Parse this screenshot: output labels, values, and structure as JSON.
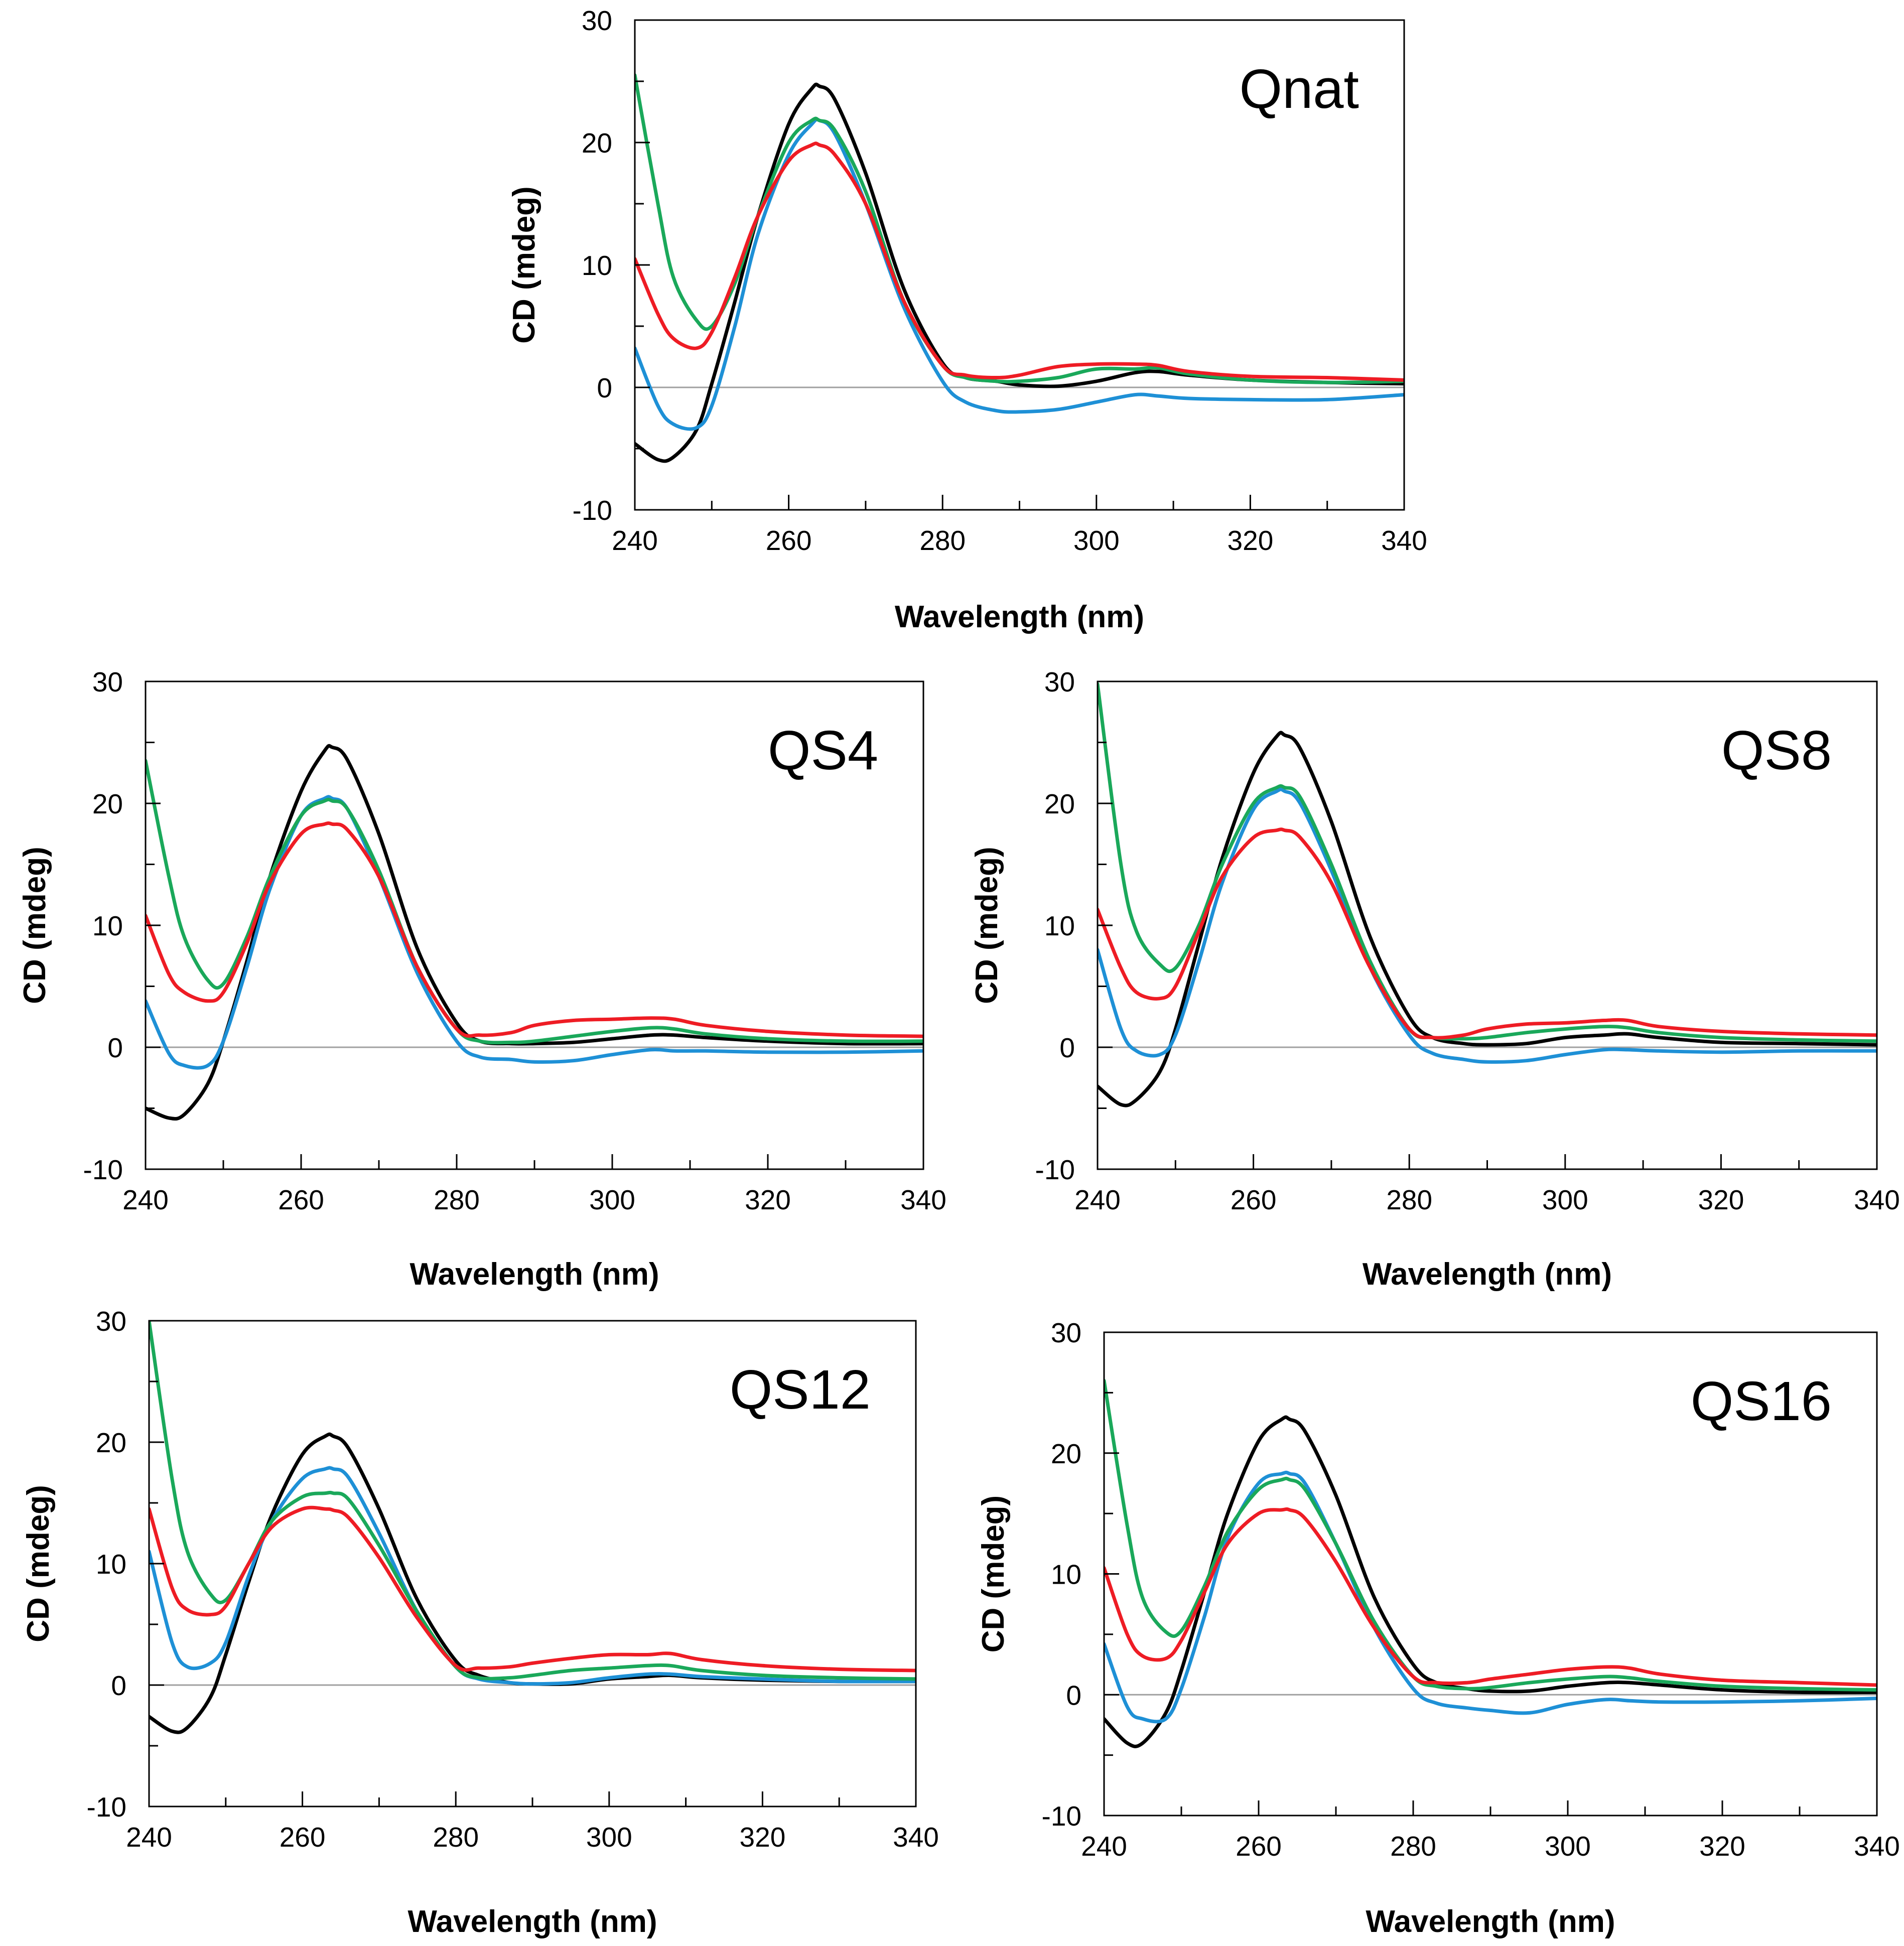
{
  "colors": {
    "black": "#000000",
    "blue": "#1e90d6",
    "green": "#1aa85a",
    "red": "#ee1c24"
  },
  "chart_data": [
    {
      "type": "line",
      "title": "Qnat",
      "xlabel": "Wavelength (nm)",
      "ylabel": "CD (mdeg)",
      "xlim": [
        240,
        340
      ],
      "ylim": [
        -10,
        30
      ],
      "xticks": [
        "240",
        "260",
        "280",
        "300",
        "320",
        "340"
      ],
      "yticks": [
        "-10",
        "0",
        "10",
        "20",
        "30"
      ],
      "x": [
        240,
        243,
        245,
        248,
        250,
        253,
        256,
        260,
        263,
        264,
        266,
        270,
        275,
        280,
        283,
        287,
        290,
        295,
        300,
        305,
        308,
        312,
        320,
        330,
        340
      ],
      "series": [
        {
          "name": "black",
          "color": "black",
          "values": [
            -4.6,
            -5.9,
            -5.7,
            -3.5,
            0.3,
            7,
            14,
            21.5,
            24.4,
            24.6,
            23.5,
            17.5,
            8,
            2,
            0.8,
            0.5,
            0.2,
            0.1,
            0.5,
            1.2,
            1.3,
            1,
            0.6,
            0.4,
            0.3
          ]
        },
        {
          "name": "blue",
          "color": "blue",
          "values": [
            3.2,
            -1.5,
            -3,
            -3.3,
            -1.5,
            5,
            12.5,
            19,
            21.5,
            21.8,
            20.7,
            15,
            6.5,
            0.5,
            -1.2,
            -1.9,
            -2,
            -1.8,
            -1.2,
            -0.6,
            -0.7,
            -0.9,
            -1,
            -1,
            -0.6
          ]
        },
        {
          "name": "green",
          "color": "green",
          "values": [
            25.5,
            15,
            9,
            5.5,
            5,
            8.5,
            14,
            20,
            21.8,
            21.8,
            21,
            16,
            7,
            1.8,
            0.8,
            0.5,
            0.5,
            0.8,
            1.5,
            1.5,
            1.6,
            1.1,
            0.6,
            0.4,
            0.5
          ]
        },
        {
          "name": "red",
          "color": "red",
          "values": [
            10.5,
            6,
            4,
            3.2,
            4.5,
            9,
            14,
            18.5,
            19.8,
            19.8,
            19,
            15,
            7,
            1.8,
            1,
            0.8,
            1,
            1.7,
            1.9,
            1.9,
            1.8,
            1.3,
            0.9,
            0.8,
            0.6
          ]
        }
      ]
    },
    {
      "type": "line",
      "title": "QS4",
      "xlabel": "Wavelength (nm)",
      "ylabel": "CD (mdeg)",
      "xlim": [
        240,
        340
      ],
      "ylim": [
        -10,
        30
      ],
      "xticks": [
        "240",
        "260",
        "280",
        "300",
        "320",
        "340"
      ],
      "yticks": [
        "-10",
        "0",
        "10",
        "20",
        "30"
      ],
      "x": [
        240,
        243,
        245,
        248,
        250,
        253,
        256,
        260,
        263,
        264,
        266,
        270,
        275,
        280,
        283,
        287,
        290,
        295,
        300,
        305,
        308,
        312,
        320,
        330,
        340
      ],
      "series": [
        {
          "name": "black",
          "color": "black",
          "values": [
            -5,
            -5.8,
            -5.5,
            -3,
            0.5,
            7,
            14,
            21,
            24.3,
            24.6,
            23.5,
            17.5,
            8,
            2,
            0.5,
            0.3,
            0.3,
            0.4,
            0.7,
            1,
            1,
            0.8,
            0.5,
            0.3,
            0.3
          ]
        },
        {
          "name": "blue",
          "color": "blue",
          "values": [
            3.8,
            -0.5,
            -1.5,
            -1.5,
            0.5,
            6.5,
            13,
            19,
            20.4,
            20.4,
            19.5,
            14,
            6,
            0.5,
            -0.8,
            -1,
            -1.2,
            -1.1,
            -0.6,
            -0.2,
            -0.3,
            -0.3,
            -0.4,
            -0.4,
            -0.3
          ]
        },
        {
          "name": "green",
          "color": "green",
          "values": [
            23.5,
            14,
            9,
            5.5,
            5.2,
            9,
            14,
            19,
            20.2,
            20.2,
            19.5,
            14.5,
            6.5,
            1.5,
            0.5,
            0.4,
            0.5,
            0.9,
            1.3,
            1.6,
            1.5,
            1.1,
            0.7,
            0.5,
            0.5
          ]
        },
        {
          "name": "red",
          "color": "red",
          "values": [
            10.8,
            6,
            4.5,
            3.8,
            4.5,
            8.5,
            13.5,
            17.5,
            18.3,
            18.3,
            17.8,
            14,
            6.5,
            1.5,
            1,
            1.2,
            1.8,
            2.2,
            2.3,
            2.4,
            2.3,
            1.8,
            1.3,
            1,
            0.9
          ]
        }
      ]
    },
    {
      "type": "line",
      "title": "QS8",
      "xlabel": "Wavelength (nm)",
      "ylabel": "CD (mdeg)",
      "xlim": [
        240,
        340
      ],
      "ylim": [
        -10,
        30
      ],
      "xticks": [
        "240",
        "260",
        "280",
        "300",
        "320",
        "340"
      ],
      "yticks": [
        "-10",
        "0",
        "10",
        "20",
        "30"
      ],
      "x": [
        240,
        243,
        245,
        248,
        250,
        253,
        256,
        260,
        263,
        264,
        266,
        270,
        275,
        280,
        283,
        287,
        290,
        295,
        300,
        305,
        308,
        312,
        320,
        330,
        340
      ],
      "series": [
        {
          "name": "black",
          "color": "black",
          "values": [
            -3.2,
            -4.7,
            -4.3,
            -2,
            1.5,
            8.5,
            15.5,
            22.5,
            25.5,
            25.6,
            24.5,
            18.5,
            9,
            2.5,
            0.8,
            0.3,
            0.2,
            0.3,
            0.8,
            1,
            1.1,
            0.8,
            0.4,
            0.3,
            0.2
          ]
        },
        {
          "name": "blue",
          "color": "blue",
          "values": [
            8,
            1.5,
            -0.3,
            -0.6,
            1,
            7,
            13.5,
            19.5,
            21,
            21,
            20,
            14.5,
            6.5,
            1,
            -0.5,
            -1,
            -1.2,
            -1.1,
            -0.6,
            -0.2,
            -0.2,
            -0.3,
            -0.4,
            -0.3,
            -0.3
          ]
        },
        {
          "name": "green",
          "color": "green",
          "values": [
            29.8,
            15,
            9.5,
            6.8,
            6.5,
            10,
            15,
            20,
            21.3,
            21.3,
            20.5,
            15,
            7,
            1.5,
            0.8,
            0.7,
            0.8,
            1.2,
            1.5,
            1.7,
            1.6,
            1.2,
            0.8,
            0.6,
            0.5
          ]
        },
        {
          "name": "red",
          "color": "red",
          "values": [
            11.3,
            6.5,
            4.5,
            4,
            5,
            9.5,
            14,
            17.2,
            17.8,
            17.8,
            17.2,
            13.5,
            6.5,
            1.5,
            0.8,
            1,
            1.5,
            1.9,
            2,
            2.2,
            2.2,
            1.7,
            1.3,
            1.1,
            1
          ]
        }
      ]
    },
    {
      "type": "line",
      "title": "QS12",
      "xlabel": "Wavelength (nm)",
      "ylabel": "CD (mdeg)",
      "xlim": [
        240,
        340
      ],
      "ylim": [
        -10,
        30
      ],
      "xticks": [
        "240",
        "260",
        "280",
        "300",
        "320",
        "340"
      ],
      "yticks": [
        "-10",
        "0",
        "10",
        "20",
        "30"
      ],
      "x": [
        240,
        243,
        245,
        248,
        250,
        253,
        256,
        260,
        263,
        264,
        266,
        270,
        275,
        280,
        283,
        287,
        290,
        295,
        300,
        305,
        308,
        312,
        320,
        330,
        340
      ],
      "series": [
        {
          "name": "black",
          "color": "black",
          "values": [
            -2.6,
            -3.8,
            -3.5,
            -1,
            2.5,
            8.5,
            14,
            19,
            20.5,
            20.5,
            19.5,
            14.5,
            7,
            2,
            0.8,
            0.2,
            0.1,
            0.1,
            0.5,
            0.7,
            0.8,
            0.6,
            0.4,
            0.3,
            0.3
          ]
        },
        {
          "name": "blue",
          "color": "blue",
          "values": [
            11,
            3.5,
            1.5,
            1.8,
            3.5,
            9,
            13.5,
            17,
            17.8,
            17.8,
            17.1,
            12.5,
            6,
            1.5,
            0.5,
            0.2,
            0.1,
            0.2,
            0.6,
            0.9,
            0.9,
            0.7,
            0.5,
            0.3,
            0.3
          ]
        },
        {
          "name": "green",
          "color": "green",
          "values": [
            30,
            17,
            11,
            7.5,
            7,
            10,
            13.5,
            15.5,
            15.8,
            15.8,
            15.3,
            11.5,
            6,
            1.5,
            0.6,
            0.6,
            0.8,
            1.2,
            1.4,
            1.6,
            1.6,
            1.2,
            0.8,
            0.6,
            0.5
          ]
        },
        {
          "name": "red",
          "color": "red",
          "values": [
            14.5,
            8,
            6.2,
            5.8,
            6.5,
            10,
            13,
            14.5,
            14.5,
            14.4,
            13.8,
            10.5,
            5.5,
            1.6,
            1.4,
            1.5,
            1.8,
            2.2,
            2.5,
            2.5,
            2.6,
            2.1,
            1.6,
            1.3,
            1.2
          ]
        }
      ]
    },
    {
      "type": "line",
      "title": "QS16",
      "xlabel": "Wavelength (nm)",
      "ylabel": "CD (mdeg)",
      "xlim": [
        240,
        340
      ],
      "ylim": [
        -10,
        30
      ],
      "xticks": [
        "240",
        "260",
        "280",
        "300",
        "320",
        "340"
      ],
      "yticks": [
        "-10",
        "0",
        "10",
        "20",
        "30"
      ],
      "x": [
        240,
        243,
        245,
        248,
        250,
        253,
        256,
        260,
        263,
        264,
        266,
        270,
        275,
        280,
        283,
        287,
        290,
        295,
        300,
        305,
        308,
        312,
        320,
        330,
        340
      ],
      "series": [
        {
          "name": "black",
          "color": "black",
          "values": [
            -2,
            -4,
            -4,
            -1.5,
            2,
            8.5,
            15,
            21,
            22.8,
            22.8,
            21.8,
            16.5,
            8,
            2.5,
            1,
            0.5,
            0.3,
            0.3,
            0.7,
            1,
            1,
            0.8,
            0.4,
            0.2,
            0.2
          ]
        },
        {
          "name": "blue",
          "color": "blue",
          "values": [
            4.2,
            -1,
            -2,
            -2,
            0.5,
            6.5,
            13,
            17.5,
            18.3,
            18.3,
            17.5,
            12.5,
            5.5,
            0.5,
            -0.7,
            -1.1,
            -1.3,
            -1.5,
            -0.8,
            -0.4,
            -0.5,
            -0.6,
            -0.6,
            -0.5,
            -0.3
          ]
        },
        {
          "name": "green",
          "color": "green",
          "values": [
            26,
            14,
            8,
            5.2,
            5.3,
            9,
            13.5,
            17,
            17.8,
            17.8,
            17,
            12.5,
            6,
            1.5,
            0.7,
            0.5,
            0.6,
            1,
            1.3,
            1.5,
            1.4,
            1.1,
            0.7,
            0.5,
            0.4
          ]
        },
        {
          "name": "red",
          "color": "red",
          "values": [
            10.5,
            5,
            3.2,
            3,
            4.5,
            8.5,
            12.5,
            15,
            15.3,
            15.3,
            14.6,
            11,
            5.5,
            1.5,
            1,
            1,
            1.3,
            1.7,
            2.1,
            2.3,
            2.2,
            1.7,
            1.2,
            1,
            0.8
          ]
        }
      ]
    }
  ]
}
